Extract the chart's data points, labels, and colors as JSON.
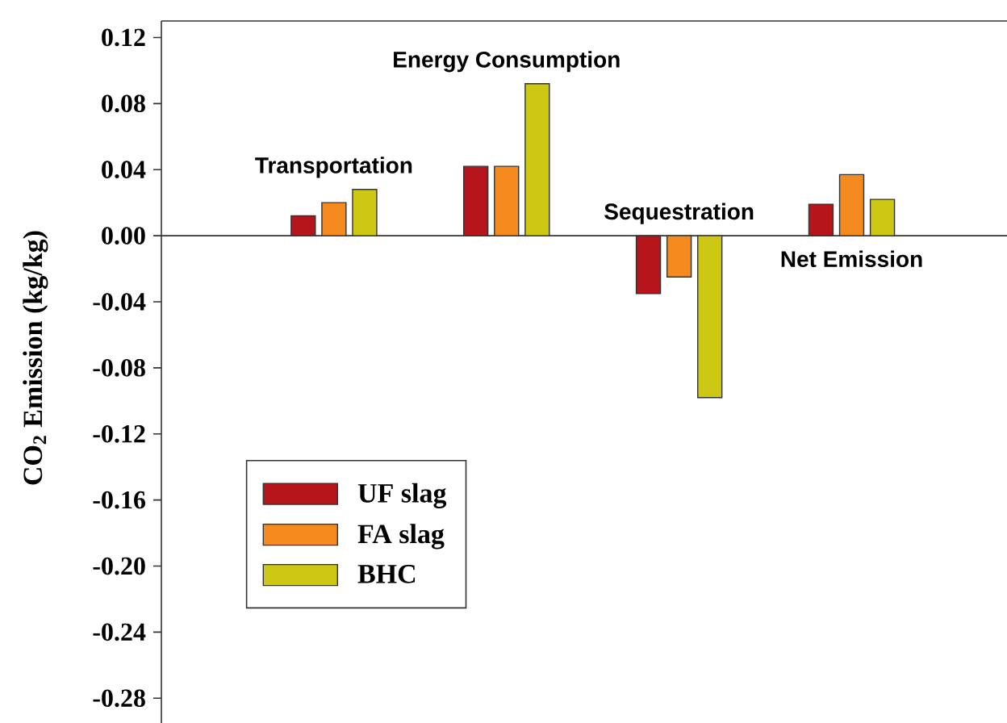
{
  "chart_data": {
    "type": "bar",
    "ylabel": "CO$_{2}$ Emission (kg/kg)",
    "categories": [
      "Transportation",
      "Energy Consumption",
      "Sequestration",
      "Net Emission"
    ],
    "series": [
      {
        "name": "UF slag",
        "color": "#b5151b",
        "values": [
          0.012,
          0.042,
          -0.035,
          0.019
        ]
      },
      {
        "name": "FA slag",
        "color": "#f58a1f",
        "values": [
          0.02,
          0.042,
          -0.025,
          0.037
        ]
      },
      {
        "name": "BHC",
        "color": "#cdc814",
        "values": [
          0.028,
          0.092,
          -0.098,
          0.022
        ]
      }
    ],
    "ylim": [
      -0.295,
      0.13
    ],
    "yticks": [
      -0.28,
      -0.24,
      {
        "value": -0.2,
        "label": "-0.20"
      },
      -0.16,
      -0.12,
      -0.08,
      -0.04,
      {
        "value": 0,
        "label": "0.00"
      },
      0.04,
      0.08,
      0.12
    ],
    "legend": "bottom left"
  }
}
